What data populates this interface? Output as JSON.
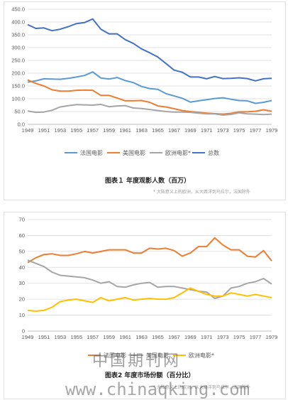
{
  "chart_data": [
    {
      "type": "line",
      "title": "",
      "caption": "图表１ 年度观影人数（百万）",
      "note": "* 大陆意义上的欧洲，从大西洋到乌拉尔，法国除外",
      "xlabel": "",
      "ylabel": "",
      "ylim": [
        0,
        450
      ],
      "yticks": [
        "0.0",
        "50.0",
        "100.0",
        "150.0",
        "200.0",
        "250.0",
        "300.0",
        "350.0",
        "400.0",
        "450.0"
      ],
      "grid": true,
      "legend": "bottom",
      "x": [
        1949,
        1950,
        1951,
        1952,
        1953,
        1954,
        1955,
        1956,
        1957,
        1958,
        1959,
        1960,
        1961,
        1962,
        1963,
        1964,
        1965,
        1966,
        1967,
        1968,
        1969,
        1970,
        1971,
        1972,
        1973,
        1974,
        1975,
        1976,
        1977,
        1978,
        1979
      ],
      "xticks": [
        "1949",
        "1951",
        "1953",
        "1955",
        "1957",
        "1959",
        "1961",
        "1963",
        "1965",
        "1967",
        "1969",
        "1971",
        "1973",
        "1975",
        "1977",
        "1979"
      ],
      "series": [
        {
          "name": "法国电影",
          "color": "#5b9bd5",
          "values": [
            165,
            170,
            178,
            177,
            176,
            180,
            185,
            191,
            205,
            181,
            177,
            183,
            171,
            163,
            148,
            140,
            137,
            120,
            111,
            102,
            87,
            92,
            96,
            101,
            104,
            98,
            93,
            92,
            82,
            86,
            93
          ]
        },
        {
          "name": "美国电影",
          "color": "#ed7d31",
          "values": [
            174,
            160,
            150,
            135,
            130,
            130,
            133,
            134,
            133,
            113,
            113,
            103,
            92,
            92,
            93,
            86,
            72,
            68,
            61,
            54,
            50,
            47,
            44,
            42,
            40,
            43,
            49,
            49,
            51,
            57,
            51
          ]
        },
        {
          "name": "欧洲电影*",
          "color": "#a5a5a5",
          "values": [
            52,
            47,
            48,
            55,
            68,
            73,
            77,
            76,
            75,
            78,
            69,
            72,
            73,
            64,
            62,
            58,
            54,
            50,
            48,
            48,
            47,
            44,
            41,
            41,
            36,
            39,
            45,
            41,
            40,
            38,
            40
          ]
        },
        {
          "name": "总数",
          "color": "#4472c4",
          "values": [
            390,
            375,
            377,
            366,
            372,
            382,
            394,
            398,
            412,
            372,
            354,
            354,
            331,
            316,
            295,
            280,
            263,
            238,
            212,
            204,
            185,
            185,
            178,
            187,
            179,
            180,
            182,
            179,
            170,
            178,
            180
          ]
        }
      ]
    },
    {
      "type": "line",
      "title": "",
      "caption": "图表2 年度市场份额（百分比）",
      "note": "* 大陆意义上的欧洲，从大西洋到乌拉尔，法国除外",
      "xlabel": "",
      "ylabel": "",
      "ylim": [
        0,
        70
      ],
      "yticks": [
        "0",
        "10",
        "20",
        "30",
        "40",
        "50",
        "60",
        "70"
      ],
      "grid": true,
      "legend": "bottom",
      "x": [
        1949,
        1950,
        1951,
        1952,
        1953,
        1954,
        1955,
        1956,
        1957,
        1958,
        1959,
        1960,
        1961,
        1962,
        1963,
        1964,
        1965,
        1966,
        1967,
        1968,
        1969,
        1970,
        1971,
        1972,
        1973,
        1974,
        1975,
        1976,
        1977,
        1978,
        1979
      ],
      "xticks": [
        "1949",
        "1951",
        "1953",
        "1955",
        "1957",
        "1959",
        "1961",
        "1963",
        "1965",
        "1967",
        "1969",
        "1971",
        "1973",
        "1975",
        "1977",
        "1979"
      ],
      "series": [
        {
          "name": "法国电影",
          "color": "#ed7d31",
          "values": [
            43,
            46,
            48,
            48.5,
            47.5,
            47.5,
            48.5,
            50,
            49,
            50,
            51,
            51,
            51,
            49,
            49,
            52,
            51.5,
            52,
            50.5,
            47,
            49,
            53,
            53,
            58.5,
            54,
            51,
            51,
            47,
            46.5,
            50.5,
            44
          ]
        },
        {
          "name": "美国电影",
          "color": "#a5a5a5",
          "values": [
            44.5,
            42.5,
            40.5,
            37,
            35,
            34.5,
            34,
            33.5,
            32,
            30,
            31,
            28,
            27.5,
            29,
            30,
            30.5,
            27.5,
            28,
            28,
            27,
            26,
            25,
            24.5,
            20.5,
            22,
            27,
            28,
            30,
            31,
            33,
            29.5
          ]
        },
        {
          "name": "欧洲电影*",
          "color": "#ffc000",
          "values": [
            13,
            12.5,
            13,
            15,
            18.5,
            19.5,
            20,
            19,
            18,
            21,
            19,
            20,
            21,
            19.5,
            20,
            20.5,
            20,
            20,
            21,
            24,
            27,
            25,
            23,
            22,
            22,
            24,
            23,
            22,
            23,
            22,
            21
          ]
        }
      ]
    }
  ],
  "watermark": {
    "site_cn": "中国期刊网",
    "site_url": "www.chinaqking.com"
  }
}
